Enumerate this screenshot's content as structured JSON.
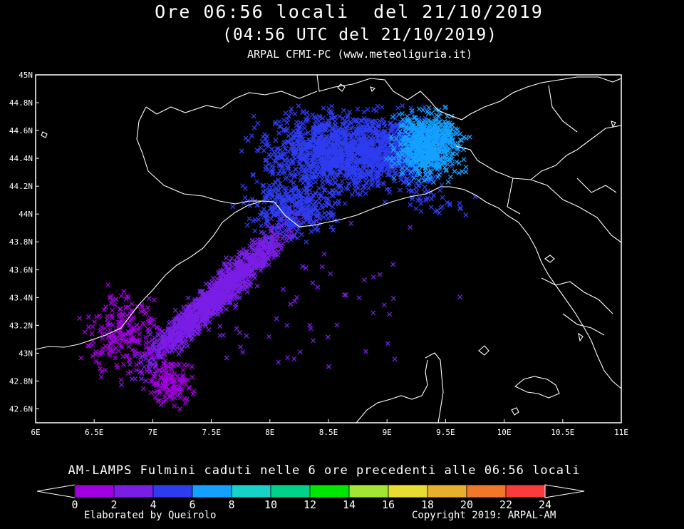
{
  "header": {
    "line1": "Ore 06:56 locali  del 21/10/2019",
    "line2": "(04:56 UTC del 21/10/2019)",
    "line3": "ARPAL CFMI-PC (www.meteoliguria.it)"
  },
  "map": {
    "lon_range": [
      6,
      11
    ],
    "lat_range": [
      42.5,
      45
    ],
    "lon_ticks": [
      "6E",
      "6.5E",
      "7E",
      "7.5E",
      "8E",
      "8.5E",
      "9E",
      "9.5E",
      "10E",
      "10.5E",
      "11E"
    ],
    "lat_ticks": [
      "42.6N",
      "42.8N",
      "43N",
      "43.2N",
      "43.4N",
      "43.6N",
      "43.8N",
      "44N",
      "44.2N",
      "44.4N",
      "44.6N",
      "44.8N",
      "45N"
    ],
    "background": "#000000",
    "outline_color": "#ffffff",
    "strike_marker": "x"
  },
  "legend": {
    "caption": "AM-LAMPS Fulmini caduti nelle 6 ore precedenti alle 06:56 locali",
    "ticks": [
      "0",
      "2",
      "4",
      "6",
      "8",
      "10",
      "12",
      "14",
      "16",
      "18",
      "20",
      "22",
      "24"
    ],
    "colors": [
      "#a000e0",
      "#7a1ee6",
      "#2e3cf0",
      "#14a0ff",
      "#16d2c8",
      "#00d28c",
      "#00e600",
      "#a0e632",
      "#e6dc32",
      "#e6af2d",
      "#f07828",
      "#fa3c3c"
    ],
    "left_credit": "Elaborated by Queirolo",
    "right_credit": "Copyright 2019: ARPAL-AM"
  }
}
